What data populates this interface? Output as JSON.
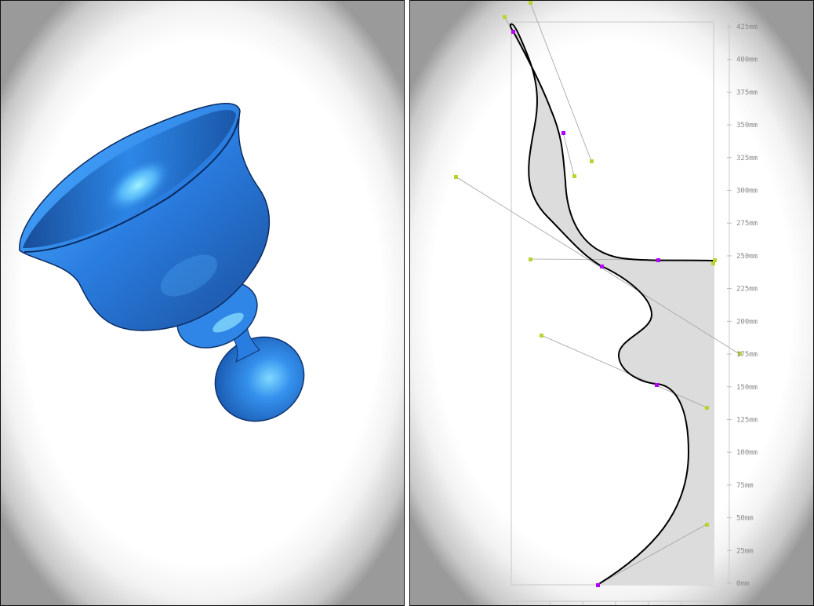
{
  "preview": {
    "object_color": "#2a7de0",
    "highlight_color": "#9ff4ff"
  },
  "editor": {
    "ruler": {
      "unit": "mm",
      "ticks": [
        "425mm",
        "400mm",
        "375mm",
        "350mm",
        "325mm",
        "300mm",
        "275mm",
        "250mm",
        "225mm",
        "200mm",
        "175mm",
        "150mm",
        "125mm",
        "100mm",
        "75mm",
        "50mm",
        "25mm",
        "0mm"
      ]
    },
    "colors": {
      "anchor_point": "#b400ff",
      "control_handle": "#b8d430",
      "profile_fill": "#dcdcdc",
      "bounds": "#c8c8c8"
    }
  }
}
